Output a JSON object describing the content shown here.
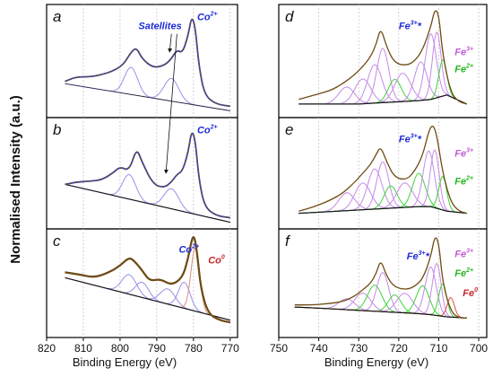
{
  "figure": {
    "ylabel": "Normalised Intensity (a.u.)",
    "left_xlabel": "Binding Energy (eV)",
    "right_xlabel": "Binding Energy (eV)"
  },
  "colors": {
    "experimental": "#6e4a12",
    "envelope": "#3a43c8",
    "background": "#111111",
    "fe3_peaks": "#c48ae6",
    "fe2_peaks": "#3fd33a",
    "fe0_peak": "#e05040",
    "co_peaks": "#9b8ee8",
    "co0_peak": "#d98c7a",
    "grid": "#c8c8c8",
    "label_blue": "#1f2bd6",
    "label_purple": "#c05bd6",
    "label_green": "#22b81f",
    "label_red": "#c8262a"
  },
  "chart_data": [
    {
      "panel": "a",
      "type": "line",
      "xlim": [
        820,
        768
      ],
      "xticks": [
        820,
        810,
        800,
        790,
        780,
        770
      ],
      "series": [
        {
          "role": "experimental",
          "x": [
            815,
            812,
            808,
            805,
            802,
            799,
            797,
            795.5,
            794,
            791,
            788,
            786,
            784.5,
            783,
            781.5,
            780.5,
            779.5,
            778.5,
            777,
            774,
            770
          ],
          "y": [
            0.32,
            0.36,
            0.36,
            0.38,
            0.41,
            0.47,
            0.58,
            0.62,
            0.52,
            0.44,
            0.46,
            0.52,
            0.6,
            0.57,
            0.72,
            0.9,
            0.8,
            0.45,
            0.2,
            0.12,
            0.1
          ]
        },
        {
          "role": "background",
          "x": [
            815,
            770
          ],
          "y": [
            0.3,
            0.06
          ]
        }
      ],
      "labels": [
        {
          "text": "Satellites",
          "x": 795,
          "y": 0.78,
          "color_key": "label_blue"
        },
        {
          "text": "Co",
          "sup": "2+",
          "x": 779,
          "y": 0.86,
          "color_key": "label_blue"
        }
      ]
    },
    {
      "panel": "b",
      "type": "line",
      "xlim": [
        820,
        768
      ],
      "xticks": [
        820,
        810,
        800,
        790,
        780,
        770
      ],
      "series": [
        {
          "role": "experimental",
          "x": [
            815,
            812,
            808,
            805,
            802,
            800,
            797.5,
            795.5,
            794,
            791,
            788,
            786,
            784.5,
            783,
            781.5,
            780.5,
            779.5,
            778.5,
            777,
            774,
            770
          ],
          "y": [
            0.4,
            0.42,
            0.43,
            0.44,
            0.5,
            0.56,
            0.52,
            0.73,
            0.6,
            0.4,
            0.37,
            0.42,
            0.49,
            0.52,
            0.68,
            0.89,
            0.8,
            0.44,
            0.2,
            0.12,
            0.1
          ]
        },
        {
          "role": "background",
          "x": [
            815,
            770
          ],
          "y": [
            0.4,
            0.06
          ]
        }
      ],
      "labels": [
        {
          "text": "Co",
          "sup": "2+",
          "x": 779,
          "y": 0.86,
          "color_key": "label_blue"
        }
      ]
    },
    {
      "panel": "c",
      "type": "line",
      "xlim": [
        820,
        768
      ],
      "xticks": [
        820,
        810,
        800,
        790,
        780,
        770
      ],
      "series": [
        {
          "role": "experimental",
          "x": [
            815,
            811,
            807,
            803,
            800,
            797.5,
            796,
            794,
            792,
            789,
            786,
            783,
            781.5,
            780.5,
            779.8,
            779,
            778,
            776,
            773,
            770
          ],
          "y": [
            0.6,
            0.58,
            0.55,
            0.6,
            0.66,
            0.74,
            0.7,
            0.62,
            0.52,
            0.54,
            0.48,
            0.55,
            0.72,
            0.9,
            0.94,
            0.78,
            0.45,
            0.22,
            0.16,
            0.14
          ]
        },
        {
          "role": "background",
          "x": [
            815,
            770
          ],
          "y": [
            0.55,
            0.16
          ]
        }
      ],
      "labels": [
        {
          "text": "Co",
          "sup": "2+",
          "x": 784,
          "y": 0.78,
          "color_key": "label_blue"
        },
        {
          "text": "Co",
          "sup": "0",
          "x": 776,
          "y": 0.68,
          "color_key": "label_red"
        }
      ]
    },
    {
      "panel": "d",
      "type": "line",
      "xlim": [
        750,
        698
      ],
      "xticks": [
        750,
        740,
        730,
        720,
        710,
        700
      ],
      "series": [
        {
          "role": "experimental",
          "x": [
            745,
            741,
            737,
            734,
            731,
            729,
            727,
            725.5,
            724.5,
            723,
            721,
            718,
            716,
            714,
            712,
            711,
            710,
            709,
            707,
            705,
            703
          ],
          "y": [
            0.16,
            0.2,
            0.24,
            0.3,
            0.38,
            0.45,
            0.54,
            0.66,
            0.8,
            0.62,
            0.48,
            0.46,
            0.5,
            0.6,
            0.8,
            0.96,
            0.92,
            0.55,
            0.22,
            0.14,
            0.12
          ]
        },
        {
          "role": "background",
          "x": [
            745,
            740,
            735,
            730,
            725,
            720,
            715,
            712,
            708,
            703
          ],
          "y": [
            0.12,
            0.12,
            0.12,
            0.12,
            0.13,
            0.14,
            0.15,
            0.16,
            0.2,
            0.12
          ]
        }
      ],
      "labels": [
        {
          "text": "Fe",
          "sup": "3+",
          "extra": "*",
          "x": 720,
          "y": 0.78,
          "color_key": "label_blue"
        },
        {
          "text": "Fe",
          "sup": "3+",
          "x": 706,
          "y": 0.55,
          "color_key": "label_purple"
        },
        {
          "text": "Fe",
          "sup": "2+",
          "x": 706,
          "y": 0.4,
          "color_key": "label_green"
        }
      ]
    },
    {
      "panel": "e",
      "type": "line",
      "xlim": [
        750,
        698
      ],
      "xticks": [
        750,
        740,
        730,
        720,
        710,
        700
      ],
      "series": [
        {
          "role": "experimental",
          "x": [
            745,
            741,
            737,
            734,
            731,
            729,
            727,
            725.5,
            724.5,
            723,
            721,
            718,
            716,
            714,
            712.5,
            711.5,
            710.5,
            709,
            707,
            705,
            703
          ],
          "y": [
            0.16,
            0.2,
            0.26,
            0.32,
            0.42,
            0.5,
            0.58,
            0.68,
            0.74,
            0.6,
            0.46,
            0.44,
            0.52,
            0.66,
            0.88,
            0.94,
            0.85,
            0.5,
            0.24,
            0.16,
            0.14
          ]
        },
        {
          "role": "background",
          "x": [
            745,
            740,
            735,
            730,
            725,
            720,
            715,
            712,
            708,
            703
          ],
          "y": [
            0.14,
            0.15,
            0.16,
            0.17,
            0.18,
            0.19,
            0.2,
            0.2,
            0.16,
            0.14
          ]
        }
      ],
      "labels": [
        {
          "text": "Fe",
          "sup": "3+",
          "extra": "*",
          "x": 720,
          "y": 0.78,
          "color_key": "label_blue"
        },
        {
          "text": "Fe",
          "sup": "3+",
          "x": 706,
          "y": 0.65,
          "color_key": "label_purple"
        },
        {
          "text": "Fe",
          "sup": "2+",
          "x": 706,
          "y": 0.4,
          "color_key": "label_green"
        }
      ]
    },
    {
      "panel": "f",
      "type": "line",
      "xlim": [
        750,
        698
      ],
      "xticks": [
        750,
        740,
        730,
        720,
        710,
        700
      ],
      "series": [
        {
          "role": "experimental",
          "x": [
            746,
            742,
            738,
            734,
            731,
            729,
            727,
            725.5,
            724.5,
            723,
            721,
            718,
            716,
            714,
            712,
            711,
            710,
            709,
            707,
            705,
            703
          ],
          "y": [
            0.3,
            0.3,
            0.31,
            0.33,
            0.38,
            0.44,
            0.5,
            0.6,
            0.72,
            0.56,
            0.46,
            0.44,
            0.47,
            0.54,
            0.74,
            0.94,
            0.88,
            0.5,
            0.24,
            0.18,
            0.18
          ]
        },
        {
          "role": "background",
          "x": [
            746,
            740,
            735,
            730,
            725,
            720,
            715,
            712,
            708,
            703
          ],
          "y": [
            0.28,
            0.27,
            0.26,
            0.25,
            0.24,
            0.23,
            0.22,
            0.21,
            0.19,
            0.18
          ]
        }
      ],
      "labels": [
        {
          "text": "Fe",
          "sup": "3+",
          "extra": "*",
          "x": 718,
          "y": 0.72,
          "color_key": "label_blue"
        },
        {
          "text": "Fe",
          "sup": "3+",
          "x": 706,
          "y": 0.74,
          "color_key": "label_purple"
        },
        {
          "text": "Fe",
          "sup": "2+",
          "x": 706,
          "y": 0.56,
          "color_key": "label_green"
        },
        {
          "text": "Fe",
          "sup": "0",
          "x": 704,
          "y": 0.38,
          "color_key": "label_red"
        }
      ]
    }
  ],
  "fit_peaks": {
    "a": [
      {
        "center": 797,
        "height": 0.24,
        "width": 1.8,
        "kind": "co"
      },
      {
        "center": 786,
        "height": 0.2,
        "width": 2.0,
        "kind": "co"
      }
    ],
    "b": [
      {
        "center": 797.5,
        "height": 0.22,
        "width": 1.8,
        "kind": "co"
      },
      {
        "center": 786,
        "height": 0.18,
        "width": 2.0,
        "kind": "co"
      }
    ],
    "c": [
      {
        "center": 797.5,
        "height": 0.18,
        "width": 2.0,
        "kind": "co"
      },
      {
        "center": 794,
        "height": 0.14,
        "width": 1.8,
        "kind": "co"
      },
      {
        "center": 787,
        "height": 0.14,
        "width": 2.0,
        "kind": "co"
      },
      {
        "center": 782.5,
        "height": 0.24,
        "width": 1.6,
        "kind": "co"
      },
      {
        "center": 779.5,
        "height": 0.58,
        "width": 1.2,
        "kind": "co0"
      }
    ],
    "d": [
      {
        "center": 733,
        "height": 0.15,
        "width": 2.0,
        "kind": "fe3"
      },
      {
        "center": 729,
        "height": 0.22,
        "width": 2.0,
        "kind": "fe3"
      },
      {
        "center": 726,
        "height": 0.34,
        "width": 1.8,
        "kind": "fe3"
      },
      {
        "center": 724,
        "height": 0.48,
        "width": 1.5,
        "kind": "fe3"
      },
      {
        "center": 721,
        "height": 0.2,
        "width": 1.6,
        "kind": "fe2"
      },
      {
        "center": 719,
        "height": 0.25,
        "width": 2.0,
        "kind": "fe3"
      },
      {
        "center": 714.5,
        "height": 0.34,
        "width": 1.6,
        "kind": "fe3"
      },
      {
        "center": 712,
        "height": 0.58,
        "width": 1.4,
        "kind": "fe3"
      },
      {
        "center": 710.5,
        "height": 0.58,
        "width": 1.1,
        "kind": "fe3"
      },
      {
        "center": 709,
        "height": 0.32,
        "width": 1.0,
        "kind": "fe2"
      }
    ],
    "e": [
      {
        "center": 733,
        "height": 0.16,
        "width": 2.0,
        "kind": "fe3"
      },
      {
        "center": 729,
        "height": 0.24,
        "width": 2.0,
        "kind": "fe3"
      },
      {
        "center": 726,
        "height": 0.36,
        "width": 1.8,
        "kind": "fe3"
      },
      {
        "center": 724,
        "height": 0.42,
        "width": 1.5,
        "kind": "fe3"
      },
      {
        "center": 722,
        "height": 0.2,
        "width": 1.6,
        "kind": "fe2"
      },
      {
        "center": 718.5,
        "height": 0.22,
        "width": 2.0,
        "kind": "fe3"
      },
      {
        "center": 715,
        "height": 0.3,
        "width": 1.6,
        "kind": "fe2"
      },
      {
        "center": 712.5,
        "height": 0.5,
        "width": 1.4,
        "kind": "fe3"
      },
      {
        "center": 711,
        "height": 0.52,
        "width": 1.1,
        "kind": "fe3"
      },
      {
        "center": 709,
        "height": 0.3,
        "width": 1.0,
        "kind": "fe2"
      }
    ],
    "f": [
      {
        "center": 733,
        "height": 0.1,
        "width": 2.0,
        "kind": "fe3"
      },
      {
        "center": 729,
        "height": 0.16,
        "width": 2.0,
        "kind": "fe3"
      },
      {
        "center": 726,
        "height": 0.24,
        "width": 1.8,
        "kind": "fe2"
      },
      {
        "center": 724,
        "height": 0.36,
        "width": 1.5,
        "kind": "fe3"
      },
      {
        "center": 721,
        "height": 0.16,
        "width": 1.6,
        "kind": "fe2"
      },
      {
        "center": 718.5,
        "height": 0.18,
        "width": 2.0,
        "kind": "fe3"
      },
      {
        "center": 714,
        "height": 0.26,
        "width": 1.6,
        "kind": "fe2"
      },
      {
        "center": 712,
        "height": 0.44,
        "width": 1.4,
        "kind": "fe3"
      },
      {
        "center": 710.5,
        "height": 0.48,
        "width": 1.1,
        "kind": "fe3"
      },
      {
        "center": 709,
        "height": 0.3,
        "width": 1.0,
        "kind": "fe2"
      },
      {
        "center": 707,
        "height": 0.18,
        "width": 0.9,
        "kind": "fe0"
      }
    ]
  }
}
